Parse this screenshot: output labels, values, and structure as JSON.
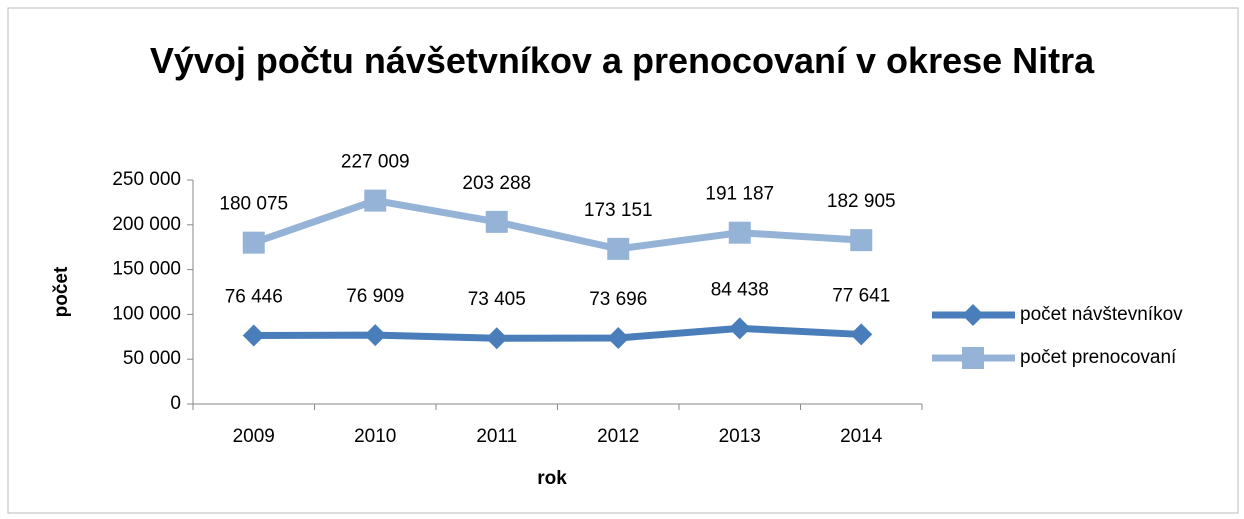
{
  "chart_data": {
    "type": "line",
    "title": "Vývoj počtu návšetvníkov a prenocovaní v okrese Nitra",
    "xlabel": "rok",
    "ylabel": "počet",
    "categories": [
      "2009",
      "2010",
      "2011",
      "2012",
      "2013",
      "2014"
    ],
    "series": [
      {
        "name": "počet návštevníkov",
        "color": "#4a7ebb",
        "marker": "diamond",
        "values": [
          76446,
          76909,
          73405,
          73696,
          84438,
          77641
        ],
        "value_labels": [
          "76 446",
          "76 909",
          "73 405",
          "73 696",
          "84 438",
          "77 641"
        ]
      },
      {
        "name": "počet prenocovaní",
        "color": "#95b3d7",
        "marker": "square",
        "values": [
          180075,
          227009,
          203288,
          173151,
          191187,
          182905
        ],
        "value_labels": [
          "180 075",
          "227 009",
          "203 288",
          "173 151",
          "191 187",
          "182 905"
        ]
      }
    ],
    "ylim": [
      0,
      250000
    ],
    "yticks": [
      0,
      {
        "value": 50000,
        "label": "50 000"
      },
      {
        "value": 100000,
        "label": "100 000"
      },
      {
        "value": 150000,
        "label": "150 000"
      },
      {
        "value": 200000,
        "label": "200 000"
      },
      {
        "value": 250000,
        "label": "250 000"
      }
    ],
    "grid": false,
    "legend": "right"
  }
}
